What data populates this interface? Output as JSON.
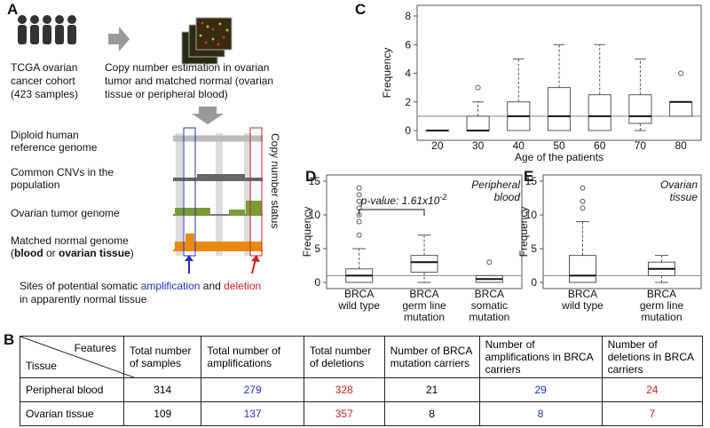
{
  "panel_labels": [
    "A",
    "B",
    "C",
    "D",
    "E"
  ],
  "diagram": {
    "cohort": [
      "TCGA  ovarian",
      "cancer cohort",
      "(423 samples)"
    ],
    "estimation": [
      "Copy number estimation in ovarian",
      "tumor and matched normal (ovarian",
      "tissue or peripheral blood)"
    ],
    "tracks": [
      [
        "Diploid human",
        "reference genome"
      ],
      [
        "Common CNVs in the",
        "population"
      ],
      [
        "Ovarian tumor genome"
      ],
      [
        "Matched normal genome"
      ]
    ],
    "normal_note": [
      "(",
      "blood",
      " or ",
      "ovarian tissue",
      ")"
    ],
    "side_label": "Copy number status",
    "sites": [
      "Sites of potential somatic ",
      "amplification",
      " and ",
      "deletion"
    ],
    "sites_line2": "in apparently normal tissue"
  },
  "chart_data": [
    {
      "type": "box",
      "xlabel": "Age of the patients",
      "ylabel": "Frequency",
      "categories": [
        20,
        30,
        40,
        50,
        60,
        70,
        80
      ],
      "stats": [
        {
          "min": 0,
          "q1": 0,
          "median": 0,
          "q3": 0,
          "max": 0,
          "outliers": []
        },
        {
          "min": 0,
          "q1": 0,
          "median": 0,
          "q3": 1,
          "max": 2,
          "outliers": [
            3
          ]
        },
        {
          "min": 0,
          "q1": 0,
          "median": 1,
          "q3": 2,
          "max": 5,
          "outliers": []
        },
        {
          "min": 0,
          "q1": 0,
          "median": 1,
          "q3": 3,
          "max": 6,
          "outliers": []
        },
        {
          "min": 0,
          "q1": 0,
          "median": 1,
          "q3": 2.5,
          "max": 6,
          "outliers": []
        },
        {
          "min": 0,
          "q1": 0.5,
          "median": 1,
          "q3": 2.5,
          "max": 5,
          "outliers": []
        },
        {
          "min": 1,
          "q1": 1,
          "median": 2,
          "q3": 2,
          "max": 2,
          "outliers": [
            4
          ]
        }
      ],
      "reference_line": 1,
      "ylim": [
        0,
        8
      ],
      "yticks": [
        0,
        2,
        4,
        6,
        8
      ],
      "color": "#555555"
    },
    {
      "type": "box",
      "ylabel": "Frequency",
      "annotation": [
        "Peripheral",
        "blood"
      ],
      "pvalue": [
        "p-value: 1.61x10",
        "-2"
      ],
      "categories": [
        [
          "BRCA",
          "wild type"
        ],
        [
          "BRCA",
          "germ line",
          "mutation"
        ],
        [
          "BRCA",
          "somatic",
          "mutation"
        ]
      ],
      "stats": [
        {
          "min": 0,
          "q1": 0,
          "median": 1,
          "q3": 2,
          "max": 5,
          "outliers": [
            7,
            9,
            10,
            11,
            12,
            13,
            14
          ]
        },
        {
          "min": 0,
          "q1": 1.5,
          "median": 3,
          "q3": 4,
          "max": 7,
          "outliers": []
        },
        {
          "min": 0,
          "q1": 0,
          "median": 0.5,
          "q3": 1,
          "max": 1,
          "outliers": [
            3
          ]
        }
      ],
      "reference_line": 1,
      "ylim": [
        0,
        15
      ],
      "yticks": [
        0,
        5,
        10,
        15
      ],
      "color": "#555555"
    },
    {
      "type": "box",
      "ylabel": "Frequency",
      "annotation": [
        "Ovarian",
        "tissue"
      ],
      "categories": [
        [
          "BRCA",
          "wild type"
        ],
        [
          "BRCA",
          "germ line",
          "mutation"
        ]
      ],
      "stats": [
        {
          "min": 0,
          "q1": 0,
          "median": 1,
          "q3": 4,
          "max": 9,
          "outliers": [
            11,
            12,
            14
          ]
        },
        {
          "min": 0,
          "q1": 1,
          "median": 2,
          "q3": 3,
          "max": 4,
          "outliers": []
        }
      ],
      "reference_line": 1,
      "ylim": [
        0,
        15
      ],
      "yticks": [
        0,
        5,
        10,
        15
      ],
      "color": "#555555"
    }
  ],
  "table": {
    "corner": [
      "Features",
      "Tissue"
    ],
    "header": [
      "Total number of samples",
      "Total number of amplifications",
      "Total number of deletions",
      "Number of BRCA mutation carriers",
      "Number of amplifications in BRCA carriers",
      "Number of deletions in BRCA carriers"
    ],
    "rows": [
      [
        "Peripheral blood",
        314,
        279,
        328,
        21,
        29,
        24
      ],
      [
        "Ovarian tissue",
        109,
        137,
        357,
        8,
        8,
        7
      ]
    ]
  }
}
